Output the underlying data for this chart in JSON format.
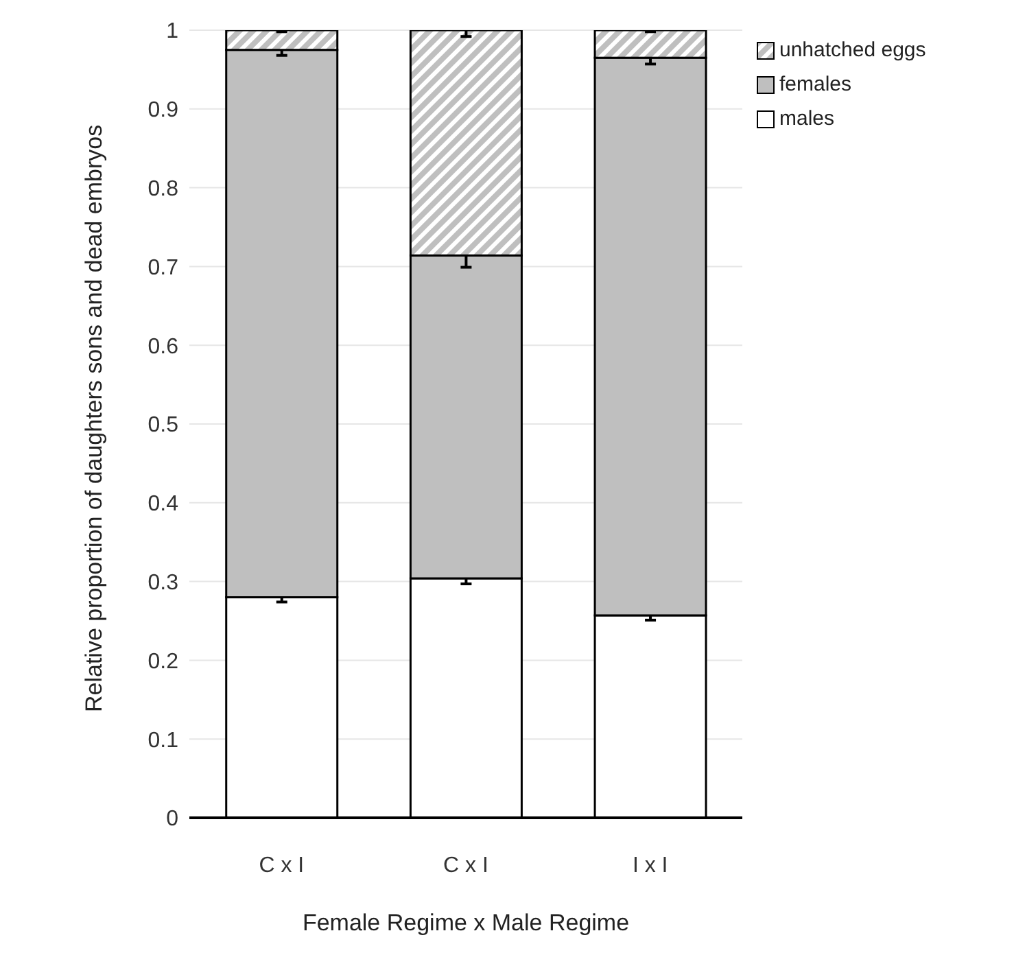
{
  "chart_data": {
    "type": "bar",
    "stacked": true,
    "xlabel": "Female Regime x Male Regime",
    "ylabel": "Relative proportion of daughters sons and dead embryos",
    "categories": [
      "C x I",
      "C x I",
      "I x I"
    ],
    "series": [
      {
        "name": "males",
        "color": "#ffffff",
        "values": [
          0.28,
          0.304,
          0.257
        ],
        "errors": [
          0.006,
          0.007,
          0.006
        ]
      },
      {
        "name": "females",
        "color": "#bfbfbf",
        "values": [
          0.695,
          0.41,
          0.708
        ],
        "errors": [
          0.007,
          0.015,
          0.008
        ]
      },
      {
        "name": "unhatched eggs",
        "color": "#bfbfbf",
        "values": [
          0.025,
          0.286,
          0.035
        ],
        "errors": [
          0.002,
          0.008,
          0.002
        ]
      }
    ],
    "ylim": [
      0,
      1
    ],
    "yticks": [
      0,
      0.1,
      0.2,
      0.3,
      0.4,
      0.5,
      0.6,
      0.7,
      0.8,
      0.9,
      1
    ],
    "grid": "y",
    "legend": "top right"
  }
}
